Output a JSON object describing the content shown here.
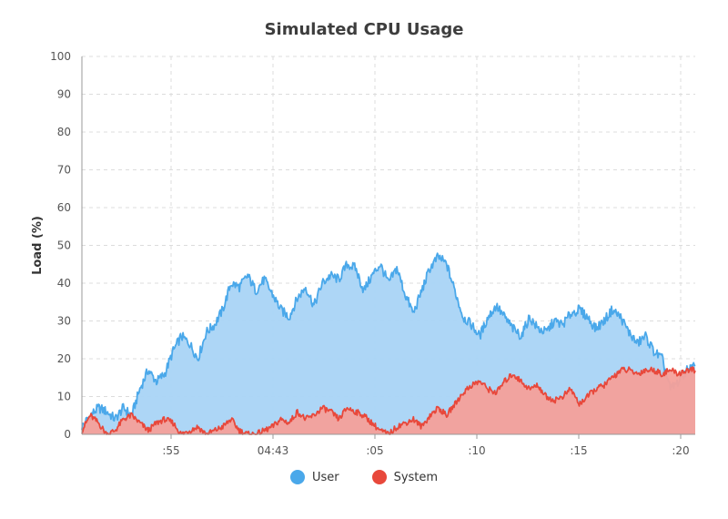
{
  "chart_data": {
    "type": "area",
    "title": "Simulated CPU Usage",
    "xlabel": "",
    "ylabel": "Load (%)",
    "ylim": [
      0,
      100
    ],
    "y_ticks": [
      0,
      10,
      20,
      30,
      40,
      50,
      60,
      70,
      80,
      90,
      100
    ],
    "x_ticks": [
      ":55",
      "04:43",
      ":05",
      ":10",
      ":15",
      ":20"
    ],
    "grid": true,
    "legend_placement": "bottom-center",
    "series": [
      {
        "name": "User",
        "color": "#4aa8ea",
        "fill": "#a9d4f5",
        "values": [
          2,
          5,
          7,
          6,
          4,
          7,
          5,
          12,
          17,
          14,
          16,
          22,
          26,
          24,
          20,
          27,
          29,
          33,
          40,
          39,
          42,
          38,
          41,
          37,
          33,
          31,
          36,
          39,
          34,
          40,
          42,
          41,
          45,
          44,
          38,
          42,
          45,
          40,
          44,
          37,
          32,
          38,
          44,
          47,
          45,
          38,
          31,
          29,
          26,
          31,
          34,
          31,
          28,
          26,
          31,
          28,
          27,
          30,
          29,
          32,
          33,
          31,
          28,
          30,
          33,
          31,
          27,
          24,
          26,
          22,
          20,
          12,
          14,
          17,
          18
        ]
      },
      {
        "name": "System",
        "color": "#e8483b",
        "fill": "#f4a09a",
        "values": [
          1,
          5,
          3,
          0,
          1,
          4,
          5,
          3,
          1,
          3,
          4,
          3,
          0,
          1,
          2,
          0,
          1,
          2,
          4,
          1,
          0,
          0,
          1,
          2,
          4,
          3,
          6,
          4,
          5,
          7,
          6,
          4,
          7,
          6,
          5,
          3,
          1,
          0,
          2,
          3,
          4,
          2,
          5,
          7,
          5,
          8,
          11,
          13,
          14,
          12,
          11,
          14,
          16,
          14,
          12,
          13,
          10,
          9,
          10,
          12,
          8,
          10,
          12,
          13,
          15,
          17,
          17,
          16,
          17,
          17,
          16,
          17,
          16,
          17,
          17
        ]
      }
    ]
  }
}
